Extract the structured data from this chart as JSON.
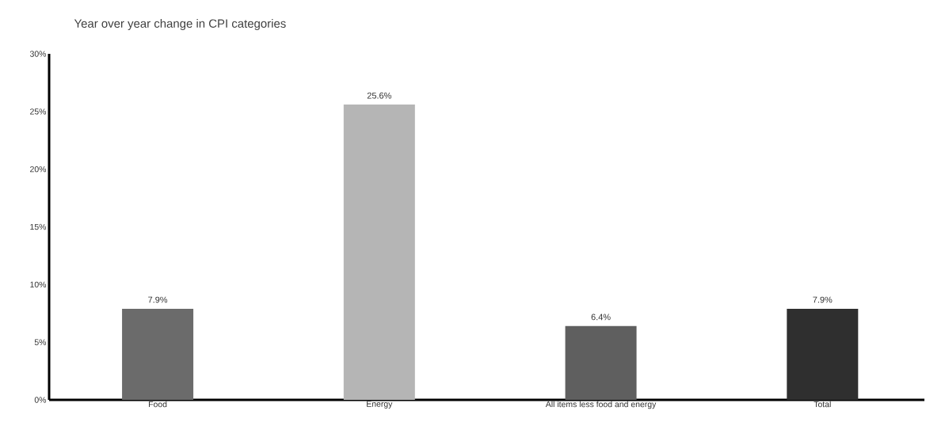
{
  "chart_data": {
    "type": "bar",
    "title": "Year over year change in CPI categories",
    "categories": [
      "Food",
      "Energy",
      "All items less food and energy",
      "Total"
    ],
    "values": [
      7.9,
      25.6,
      6.4,
      7.9
    ],
    "colors": [
      "#6b6b6b",
      "#b5b5b5",
      "#5f5f5f",
      "#2f2f2f"
    ],
    "value_labels": [
      "7.9%",
      "25.6%",
      "6.4%",
      "7.9%"
    ],
    "ylim": [
      0,
      30
    ],
    "yticks": [
      {
        "value": 0,
        "label": "0%"
      },
      {
        "value": 5,
        "label": "5%"
      },
      {
        "value": 10,
        "label": "10%"
      },
      {
        "value": 15,
        "label": "15%"
      },
      {
        "value": 20,
        "label": "20%"
      },
      {
        "value": 25,
        "label": "25%"
      },
      {
        "value": 30,
        "label": "30%"
      }
    ],
    "grid": false
  }
}
